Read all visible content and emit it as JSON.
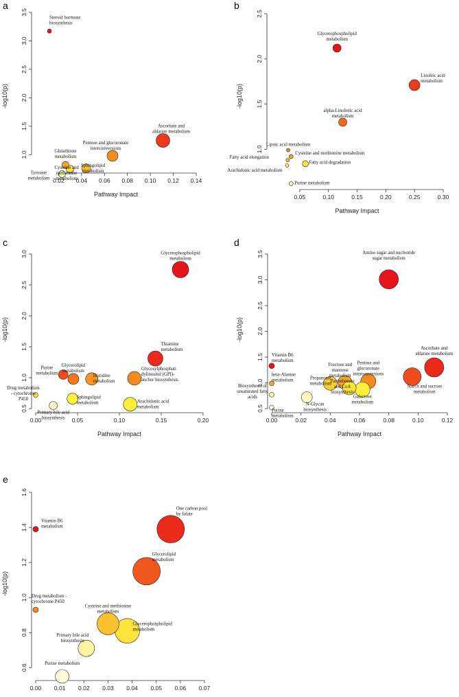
{
  "chart_data": [
    {
      "panel": "a",
      "type": "scatter",
      "xlabel": "Pathway Impact",
      "ylabel": "-log10(p)",
      "xlim": [
        0.0,
        0.14
      ],
      "ylim": [
        0.75,
        3.5
      ],
      "xticks": [
        "0.02",
        "0.04",
        "0.06",
        "0.08",
        "0.10",
        "0.12",
        "0.14"
      ],
      "yticks": [
        "1.0",
        "1.5",
        "2.0",
        "2.5",
        "3.0",
        "3.5"
      ],
      "points": [
        {
          "name": "Steroid hormone biosynthesis",
          "lines": [
            "Steroid hormone",
            "biosynthesis"
          ],
          "x": 0.012,
          "y": 3.17,
          "size": 3,
          "color": "#e8141c"
        },
        {
          "name": "Ascorbate and aldarate metabolism",
          "lines": [
            "Ascorbate and",
            "aldarate metabolism"
          ],
          "x": 0.111,
          "y": 1.25,
          "size": 10,
          "color": "#ee3a1c"
        },
        {
          "name": "Pentose and glucuronate interconversions",
          "lines": [
            "Pentose and glucuronate",
            "interconversions"
          ],
          "x": 0.067,
          "y": 0.98,
          "size": 8,
          "color": "#f58a1f"
        },
        {
          "name": "Glutathione metabolism",
          "lines": [
            "Glutathione",
            "metabolism"
          ],
          "x": 0.026,
          "y": 0.82,
          "size": 5,
          "color": "#f8a524"
        },
        {
          "name": "Sphingolipid metabolism",
          "lines": [
            "Sphingolipid",
            "metabolism"
          ],
          "x": 0.044,
          "y": 0.76,
          "size": 6.5,
          "color": "#fbc02e"
        },
        {
          "name": "Cysteine and methionine metabolism",
          "lines": [
            "Cysteine and",
            "methionine",
            "metabolism"
          ],
          "x": 0.03,
          "y": 0.75,
          "size": 5.5,
          "color": "#fde33a"
        },
        {
          "name": "Tyrosine metabolism",
          "lines": [
            "Tyrosine",
            "metabolism"
          ],
          "x": 0.023,
          "y": 0.66,
          "size": 5,
          "color": "#fff7b0"
        }
      ]
    },
    {
      "panel": "b",
      "type": "scatter",
      "xlabel": "Pathway Impact",
      "ylabel": "-log10(p)",
      "xlim": [
        0.0,
        0.3
      ],
      "ylim": [
        0.6,
        2.5
      ],
      "xticks": [
        "0.05",
        "0.10",
        "0.15",
        "0.20",
        "0.25",
        "0.30"
      ],
      "yticks": [
        "1.0",
        "1.5",
        "2.0",
        "2.5"
      ],
      "points": [
        {
          "name": "Glycerophospholipid metabolism",
          "lines": [
            "Glycerophospholipid",
            "metabolism"
          ],
          "x": 0.115,
          "y": 2.12,
          "size": 6,
          "color": "#e8141c"
        },
        {
          "name": "Linoleic acid metabolism",
          "lines": [
            "Linoleic acid",
            "metabolism"
          ],
          "x": 0.25,
          "y": 1.71,
          "size": 8,
          "color": "#ee3a1c"
        },
        {
          "name": "alpha-Linolenic acid metabolism",
          "lines": [
            "alpha-Linolenic acid",
            "metabolism"
          ],
          "x": 0.125,
          "y": 1.3,
          "size": 6,
          "color": "#f26a1e"
        },
        {
          "name": "Lipoic acid metabolism",
          "lines": [
            "Lipoic acid metabolism"
          ],
          "x": 0.03,
          "y": 0.99,
          "size": 2.5,
          "color": "#f58a1f"
        },
        {
          "name": "Cysteine and methionine metabolism",
          "lines": [
            "Cysteine and methionine metabolism"
          ],
          "x": 0.035,
          "y": 0.92,
          "size": 3,
          "color": "#f8a524"
        },
        {
          "name": "Fatty acid elongation",
          "lines": [
            "Fatty acid elongation"
          ],
          "x": 0.029,
          "y": 0.88,
          "size": 2.5,
          "color": "#fbc02e"
        },
        {
          "name": "Fatty acid degradation",
          "lines": [
            "Fatty acid degradation"
          ],
          "x": 0.06,
          "y": 0.84,
          "size": 4.5,
          "color": "#fde33a"
        },
        {
          "name": "Arachidonic acid metabolism",
          "lines": [
            "Arachidonic acid metabolism"
          ],
          "x": 0.028,
          "y": 0.82,
          "size": 2.5,
          "color": "#fdee70"
        },
        {
          "name": "Purine metabolism",
          "lines": [
            "Purine metabolism"
          ],
          "x": 0.035,
          "y": 0.62,
          "size": 3,
          "color": "#fff7b0"
        }
      ]
    },
    {
      "panel": "c",
      "type": "scatter",
      "xlabel": "Pathway Impact",
      "ylabel": "-log10(p)",
      "xlim": [
        0.0,
        0.2
      ],
      "ylim": [
        0.5,
        3.0
      ],
      "xticks": [
        "0.00",
        "0.05",
        "0.10",
        "0.15",
        "0.20"
      ],
      "yticks": [
        "0.5",
        "1.0",
        "1.5",
        "2.0",
        "2.5",
        "3.0"
      ],
      "points": [
        {
          "name": "Glycerophospholipid metabolism",
          "lines": [
            "Glycerophospholipid",
            "metabolism"
          ],
          "x": 0.173,
          "y": 2.75,
          "size": 12,
          "color": "#e8141c"
        },
        {
          "name": "Thiamine metabolism",
          "lines": [
            "Thiamine",
            "metabolism"
          ],
          "x": 0.143,
          "y": 1.31,
          "size": 11,
          "color": "#ec2a1c"
        },
        {
          "name": "Purine metabolism",
          "lines": [
            "Purine",
            "metabolism"
          ],
          "x": 0.033,
          "y": 1.05,
          "size": 7,
          "color": "#ef4b1d"
        },
        {
          "name": "Glycerolipid metabolism",
          "lines": [
            "Glycerolipid",
            "metabolism"
          ],
          "x": 0.045,
          "y": 0.98,
          "size": 8,
          "color": "#f4761e"
        },
        {
          "name": "Histidine metabolism",
          "lines": [
            "Histidine",
            "metabolism"
          ],
          "x": 0.067,
          "y": 0.98,
          "size": 9,
          "color": "#f79420"
        },
        {
          "name": "Glycosylphosphatidylinositol (GPI)-anchor biosynthesis",
          "lines": [
            "Glycosylphosphati",
            "dylinositol (GPI)-",
            "anchor biosynthesis"
          ],
          "x": 0.118,
          "y": 0.99,
          "size": 10,
          "color": "#f58a1f"
        },
        {
          "name": "Drug metabolism - cytochrome P450",
          "lines": [
            "Drug metabolism",
            "- cytochrome",
            "P450"
          ],
          "x": 0.0,
          "y": 0.72,
          "size": 3.5,
          "color": "#fde33a"
        },
        {
          "name": "Sphingolipid metabolism",
          "lines": [
            "Sphingolipid",
            "metabolism"
          ],
          "x": 0.044,
          "y": 0.66,
          "size": 8,
          "color": "#fef13a"
        },
        {
          "name": "Arachidonic acid metabolism",
          "lines": [
            "Arachidonic acid",
            "metabolism"
          ],
          "x": 0.113,
          "y": 0.57,
          "size": 10,
          "color": "#fdf03a"
        },
        {
          "name": "Primary bile acid biosynthesis",
          "lines": [
            "Primary bile acid",
            "biosynthesis"
          ],
          "x": 0.021,
          "y": 0.55,
          "size": 6,
          "color": "#fff7c8"
        }
      ]
    },
    {
      "panel": "d",
      "type": "scatter",
      "xlabel": "Pathway Impact",
      "ylabel": "-log10(p)",
      "xlim": [
        0.0,
        0.12
      ],
      "ylim": [
        0.5,
        3.5
      ],
      "xticks": [
        "0.00",
        "0.02",
        "0.04",
        "0.06",
        "0.08",
        "0.10",
        "0.12"
      ],
      "yticks": [
        "0.5",
        "1.0",
        "1.5",
        "2.0",
        "2.5",
        "3.0",
        "3.5"
      ],
      "points": [
        {
          "name": "Amino sugar and nucleotide sugar metabolism",
          "lines": [
            "Amino sugar and nucleotide",
            "sugar metabolism"
          ],
          "x": 0.08,
          "y": 3.01,
          "size": 14,
          "color": "#e8141c"
        },
        {
          "name": "Ascorbate and aldarate metabolism",
          "lines": [
            "Ascorbate and",
            "aldarate metabolism"
          ],
          "x": 0.111,
          "y": 1.3,
          "size": 14,
          "color": "#ec2a1c"
        },
        {
          "name": "Starch and sucrose metabolism",
          "lines": [
            "Starch and sucrose",
            "metabolism"
          ],
          "x": 0.096,
          "y": 1.12,
          "size": 13,
          "color": "#f04a1d"
        },
        {
          "name": "Vitamin B6 metabolism",
          "lines": [
            "Vitamin B6",
            "metabolism"
          ],
          "x": 0.0,
          "y": 1.33,
          "size": 4,
          "color": "#e8141c"
        },
        {
          "name": "Pentose and glucuronate interconversions",
          "lines": [
            "Pentose and",
            "glucuronate",
            "interconversions"
          ],
          "x": 0.066,
          "y": 1.03,
          "size": 11,
          "color": "#f58a1f"
        },
        {
          "name": "Fructose and mannose metabolism",
          "lines": [
            "Fructose and",
            "mannose",
            "metabolism"
          ],
          "x": 0.05,
          "y": 1.01,
          "size": 10,
          "color": "#f8a524"
        },
        {
          "name": "beta-Alanine metabolism",
          "lines": [
            "beta-Alanine",
            "metabolism"
          ],
          "x": 0.0,
          "y": 0.99,
          "size": 3.5,
          "color": "#f8a524"
        },
        {
          "name": "Propanoate metabolism",
          "lines": [
            "Propanoate",
            "metabolism"
          ],
          "x": 0.04,
          "y": 0.99,
          "size": 10,
          "color": "#fbd02e"
        },
        {
          "name": "Pantothenate and CoA biosynthesis",
          "lines": [
            "Pantothenate",
            "and CoA",
            "biosynthesis"
          ],
          "x": 0.053,
          "y": 0.9,
          "size": 10,
          "color": "#fde33a"
        },
        {
          "name": "Galactose metabolism",
          "lines": [
            "Galactose",
            "metabolism"
          ],
          "x": 0.062,
          "y": 0.87,
          "size": 11,
          "color": "#fef03a"
        },
        {
          "name": "Biosynthesis of unsaturated fatty acids",
          "lines": [
            "Biosynthesis of",
            "unsaturated fatty",
            "acids"
          ],
          "x": 0.0,
          "y": 0.77,
          "size": 3.5,
          "color": "#fff5a0"
        },
        {
          "name": "N-Glycan biosynthesis",
          "lines": [
            "N-Glycan",
            "biosynthesis"
          ],
          "x": 0.024,
          "y": 0.72,
          "size": 8,
          "color": "#fff8c0"
        },
        {
          "name": "Purine metabolism",
          "lines": [
            "Purine",
            "metabolism"
          ],
          "x": 0.0,
          "y": 0.52,
          "size": 3.5,
          "color": "#fffce0"
        }
      ]
    },
    {
      "panel": "e",
      "type": "scatter",
      "xlabel": "Pathway Impact",
      "ylabel": "-log10(p)",
      "xlim": [
        0.0,
        0.07
      ],
      "ylim": [
        0.55,
        1.6
      ],
      "xticks": [
        "0.00",
        "0.01",
        "0.02",
        "0.03",
        "0.04",
        "0.05",
        "0.06",
        "0.07"
      ],
      "yticks": [
        "0.6",
        "0.8",
        "1.0",
        "1.2",
        "1.4",
        "1.6"
      ],
      "points": [
        {
          "name": "Vitamin B6 metabolism",
          "lines": [
            "Vitamin B6",
            "metabolism"
          ],
          "x": 0.0,
          "y": 1.39,
          "size": 4,
          "color": "#e8141c"
        },
        {
          "name": "One carbon pool by folate",
          "lines": [
            "One carbon pool",
            "by folate"
          ],
          "x": 0.056,
          "y": 1.39,
          "size": 20,
          "color": "#ec2a1c"
        },
        {
          "name": "Glycerolipid metabolism",
          "lines": [
            "Glycerolipid",
            "metabolism"
          ],
          "x": 0.046,
          "y": 1.15,
          "size": 20,
          "color": "#f0581d"
        },
        {
          "name": "Drug metabolism - cytochrome P450",
          "lines": [
            "Drug metabolism -",
            "cytochrome P450"
          ],
          "x": 0.0,
          "y": 0.93,
          "size": 4,
          "color": "#f58a1f"
        },
        {
          "name": "Cysteine and methionine metabolism",
          "lines": [
            "Cysteine and methionine",
            "metabolism"
          ],
          "x": 0.03,
          "y": 0.85,
          "size": 16,
          "color": "#fbc02e"
        },
        {
          "name": "Glycerophospholipid metabolism",
          "lines": [
            "Glycerophospholipid",
            "metabolism"
          ],
          "x": 0.038,
          "y": 0.81,
          "size": 18,
          "color": "#fde33a"
        },
        {
          "name": "Primary bile acid biosynthesis",
          "lines": [
            "Primary bile acid",
            "biosynthesis"
          ],
          "x": 0.021,
          "y": 0.71,
          "size": 12,
          "color": "#fff2a0"
        },
        {
          "name": "Purine metabolism",
          "lines": [
            "Purine metabolism"
          ],
          "x": 0.011,
          "y": 0.55,
          "size": 10,
          "color": "#fffbd8"
        }
      ]
    }
  ]
}
